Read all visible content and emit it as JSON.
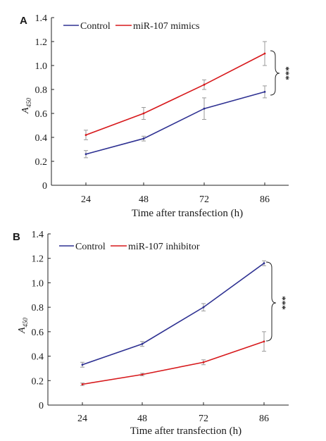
{
  "chart_data": [
    {
      "type": "line",
      "panel": "A",
      "xlabel": "Time after transfection (h)",
      "ylabel": "A",
      "ylabel_subscript": "450",
      "categories": [
        "24",
        "48",
        "72",
        "86"
      ],
      "ylim": [
        0,
        1.4
      ],
      "yticks": [
        "0",
        "0.2",
        "0.4",
        "0.6",
        "0.8",
        "1.0",
        "1.2",
        "1.4"
      ],
      "legend_position": "top",
      "significance": "***",
      "series": [
        {
          "name": "Control",
          "color": "#2e3192",
          "values": [
            0.26,
            0.39,
            0.64,
            0.78
          ],
          "errors": [
            0.03,
            0.02,
            0.09,
            0.05
          ]
        },
        {
          "name": "miR-107 mimics",
          "color": "#d7191c",
          "values": [
            0.42,
            0.6,
            0.84,
            1.1
          ],
          "errors": [
            0.04,
            0.05,
            0.04,
            0.1
          ]
        }
      ]
    },
    {
      "type": "line",
      "panel": "B",
      "xlabel": "Time after transfection (h)",
      "ylabel": "A",
      "ylabel_subscript": "450",
      "categories": [
        "24",
        "48",
        "72",
        "86"
      ],
      "ylim": [
        0,
        1.4
      ],
      "yticks": [
        "0",
        "0.2",
        "0.4",
        "0.6",
        "0.8",
        "1.0",
        "1.2",
        "1.4"
      ],
      "legend_position": "top",
      "significance": "***",
      "series": [
        {
          "name": "Control",
          "color": "#2e3192",
          "values": [
            0.33,
            0.5,
            0.8,
            1.16
          ],
          "errors": [
            0.02,
            0.02,
            0.03,
            0.02
          ]
        },
        {
          "name": "miR-107 inhibitor",
          "color": "#d7191c",
          "values": [
            0.17,
            0.25,
            0.35,
            0.52
          ],
          "errors": [
            0.01,
            0.01,
            0.02,
            0.08
          ]
        }
      ]
    }
  ]
}
